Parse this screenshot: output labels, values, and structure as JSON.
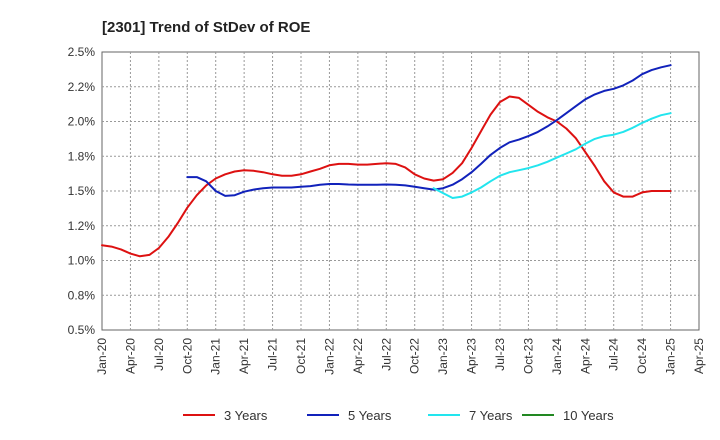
{
  "chart_data": {
    "type": "line",
    "title": "[2301]  Trend of StDev of ROE",
    "xlabel": "",
    "ylabel": "",
    "x_ticks": [
      "Jan-20",
      "Apr-20",
      "Jul-20",
      "Oct-20",
      "Jan-21",
      "Apr-21",
      "Jul-21",
      "Oct-21",
      "Jan-22",
      "Apr-22",
      "Jul-22",
      "Oct-22",
      "Jan-23",
      "Apr-23",
      "Jul-23",
      "Oct-23",
      "Jan-24",
      "Apr-24",
      "Jul-24",
      "Oct-24",
      "Jan-25",
      "Apr-25"
    ],
    "y_ticks": [
      "0.5%",
      "0.8%",
      "1.0%",
      "1.2%",
      "1.5%",
      "1.8%",
      "2.0%",
      "2.2%",
      "2.5%"
    ],
    "ylim": [
      0.5,
      2.5
    ],
    "xlim": [
      "2020-01",
      "2025-04"
    ],
    "grid": true,
    "legend_position": "bottom",
    "series": [
      {
        "name": "3 Years",
        "color": "#dd1111",
        "x": [
          "2020-01",
          "2020-02",
          "2020-03",
          "2020-04",
          "2020-05",
          "2020-06",
          "2020-07",
          "2020-08",
          "2020-09",
          "2020-10",
          "2020-11",
          "2020-12",
          "2021-01",
          "2021-02",
          "2021-03",
          "2021-04",
          "2021-05",
          "2021-06",
          "2021-07",
          "2021-08",
          "2021-09",
          "2021-10",
          "2021-11",
          "2021-12",
          "2022-01",
          "2022-02",
          "2022-03",
          "2022-04",
          "2022-05",
          "2022-06",
          "2022-07",
          "2022-08",
          "2022-09",
          "2022-10",
          "2022-11",
          "2022-12",
          "2023-01",
          "2023-02",
          "2023-03",
          "2023-04",
          "2023-05",
          "2023-06",
          "2023-07",
          "2023-08",
          "2023-09",
          "2023-10",
          "2023-11",
          "2023-12",
          "2024-01",
          "2024-02",
          "2024-03",
          "2024-04",
          "2024-05",
          "2024-06",
          "2024-07",
          "2024-08",
          "2024-09",
          "2024-10",
          "2024-11",
          "2024-12",
          "2025-01"
        ],
        "values": [
          1.11,
          1.1,
          1.08,
          1.05,
          1.03,
          1.04,
          1.09,
          1.17,
          1.27,
          1.38,
          1.47,
          1.54,
          1.59,
          1.62,
          1.64,
          1.65,
          1.645,
          1.635,
          1.62,
          1.61,
          1.61,
          1.62,
          1.64,
          1.66,
          1.685,
          1.695,
          1.695,
          1.69,
          1.69,
          1.695,
          1.7,
          1.695,
          1.67,
          1.62,
          1.59,
          1.575,
          1.585,
          1.63,
          1.7,
          1.81,
          1.93,
          2.05,
          2.14,
          2.18,
          2.17,
          2.12,
          2.07,
          2.03,
          2.0,
          1.95,
          1.88,
          1.78,
          1.68,
          1.57,
          1.49,
          1.46,
          1.46,
          1.49,
          1.5,
          1.5,
          1.5
        ]
      },
      {
        "name": "5 Years",
        "color": "#1122bb",
        "x": [
          "2020-10",
          "2020-11",
          "2020-12",
          "2021-01",
          "2021-02",
          "2021-03",
          "2021-04",
          "2021-05",
          "2021-06",
          "2021-07",
          "2021-08",
          "2021-09",
          "2021-10",
          "2021-11",
          "2021-12",
          "2022-01",
          "2022-02",
          "2022-03",
          "2022-04",
          "2022-05",
          "2022-06",
          "2022-07",
          "2022-08",
          "2022-09",
          "2022-10",
          "2022-11",
          "2022-12",
          "2023-01",
          "2023-02",
          "2023-03",
          "2023-04",
          "2023-05",
          "2023-06",
          "2023-07",
          "2023-08",
          "2023-09",
          "2023-10",
          "2023-11",
          "2023-12",
          "2024-01",
          "2024-02",
          "2024-03",
          "2024-04",
          "2024-05",
          "2024-06",
          "2024-07",
          "2024-08",
          "2024-09",
          "2024-10",
          "2024-11",
          "2024-12",
          "2025-01"
        ],
        "values": [
          1.6,
          1.6,
          1.57,
          1.5,
          1.465,
          1.47,
          1.495,
          1.51,
          1.52,
          1.525,
          1.525,
          1.525,
          1.53,
          1.535,
          1.545,
          1.55,
          1.55,
          1.547,
          1.545,
          1.545,
          1.545,
          1.547,
          1.545,
          1.54,
          1.53,
          1.52,
          1.51,
          1.52,
          1.545,
          1.585,
          1.635,
          1.695,
          1.76,
          1.81,
          1.85,
          1.87,
          1.895,
          1.925,
          1.965,
          2.01,
          2.06,
          2.11,
          2.16,
          2.195,
          2.22,
          2.235,
          2.26,
          2.295,
          2.34,
          2.37,
          2.39,
          2.405
        ]
      },
      {
        "name": "7 Years",
        "color": "#22e5ee",
        "x": [
          "2022-12",
          "2023-01",
          "2023-02",
          "2023-03",
          "2023-04",
          "2023-05",
          "2023-06",
          "2023-07",
          "2023-08",
          "2023-09",
          "2023-10",
          "2023-11",
          "2023-12",
          "2024-01",
          "2024-02",
          "2024-03",
          "2024-04",
          "2024-05",
          "2024-06",
          "2024-07",
          "2024-08",
          "2024-09",
          "2024-10",
          "2024-11",
          "2024-12",
          "2025-01"
        ],
        "values": [
          1.52,
          1.485,
          1.45,
          1.46,
          1.49,
          1.525,
          1.57,
          1.61,
          1.635,
          1.65,
          1.665,
          1.685,
          1.71,
          1.74,
          1.77,
          1.8,
          1.84,
          1.875,
          1.895,
          1.905,
          1.925,
          1.955,
          1.99,
          2.02,
          2.045,
          2.06
        ]
      },
      {
        "name": "10 Years",
        "color": "#228822",
        "x": [],
        "values": []
      }
    ]
  }
}
